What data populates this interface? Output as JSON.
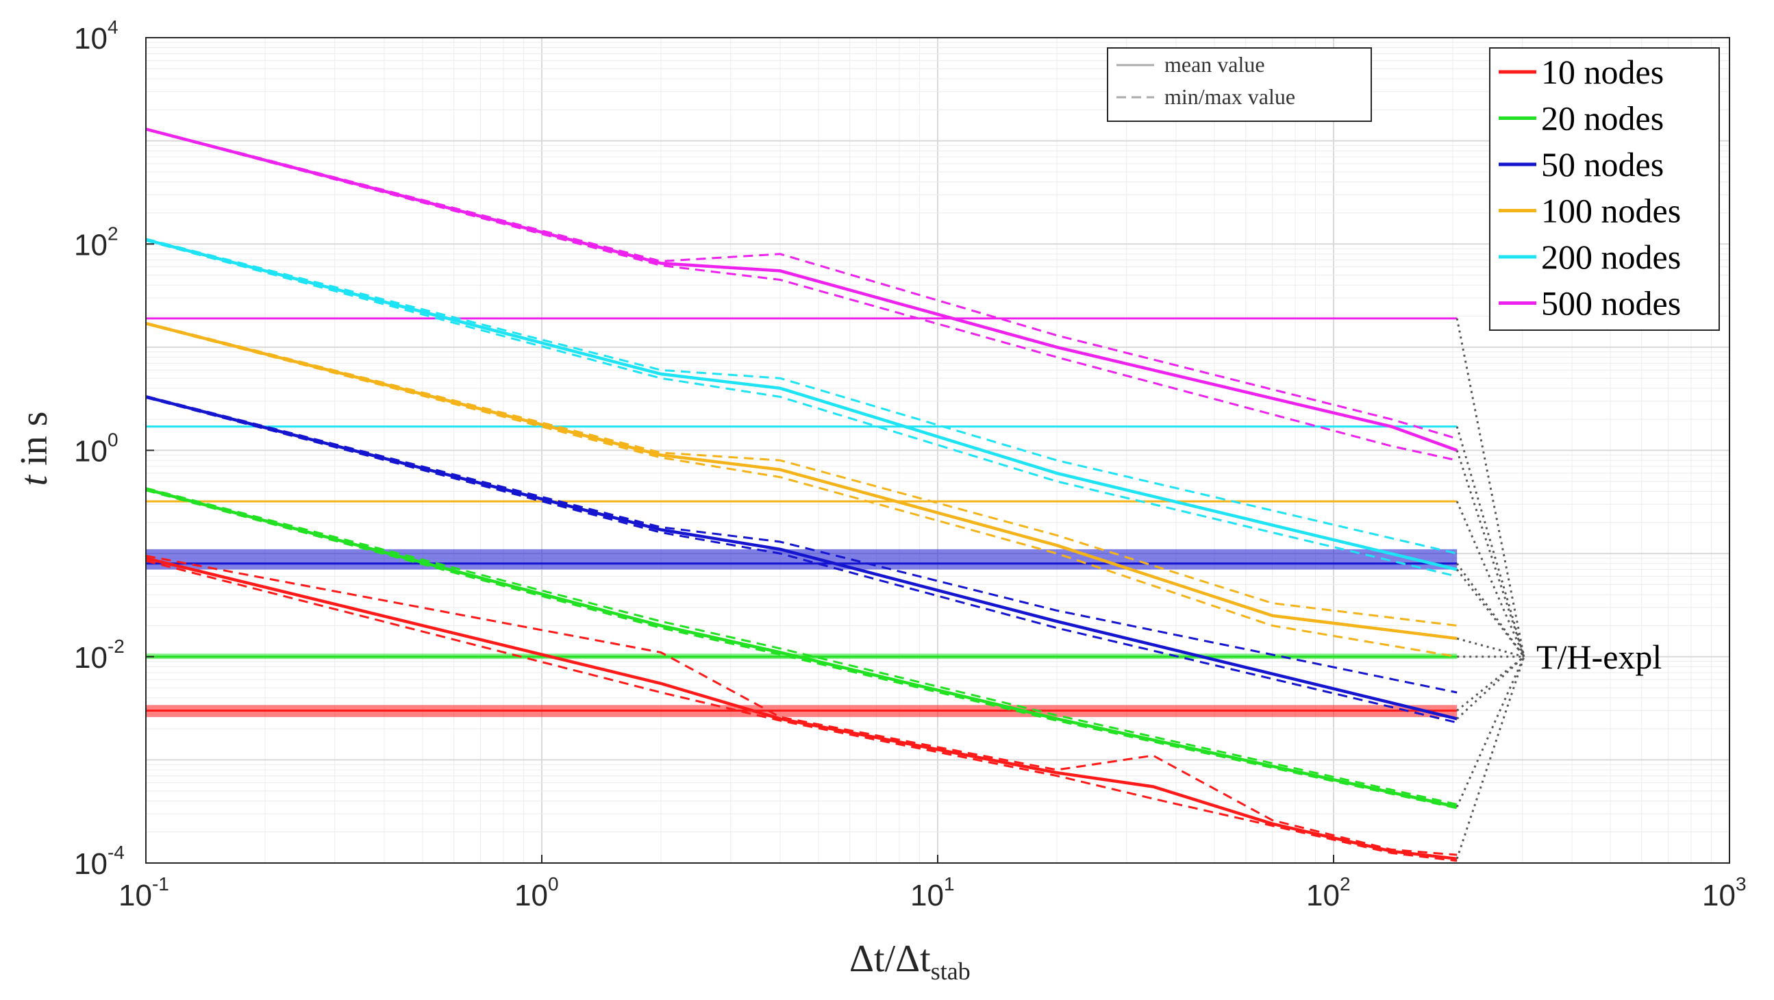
{
  "chart_data": {
    "type": "line",
    "xscale": "log",
    "yscale": "log",
    "xlim": [
      0.1,
      1000
    ],
    "ylim": [
      0.0001,
      10000
    ],
    "xlabel": {
      "main": "Δt/Δt",
      "sub": "stab"
    },
    "ylabel": {
      "italic": "t",
      "rest": " in s"
    },
    "x_ticks": [
      {
        "base": "10",
        "exp": "-1",
        "value": 0.1
      },
      {
        "base": "10",
        "exp": "0",
        "value": 1
      },
      {
        "base": "10",
        "exp": "1",
        "value": 10
      },
      {
        "base": "10",
        "exp": "2",
        "value": 100
      },
      {
        "base": "10",
        "exp": "3",
        "value": 1000
      }
    ],
    "y_ticks": [
      {
        "base": "10",
        "exp": "-4",
        "value": 0.0001
      },
      {
        "base": "10",
        "exp": "-2",
        "value": 0.01
      },
      {
        "base": "10",
        "exp": "0",
        "value": 1
      },
      {
        "base": "10",
        "exp": "2",
        "value": 100
      },
      {
        "base": "10",
        "exp": "4",
        "value": 10000
      }
    ],
    "grid": true,
    "legend": {
      "placement": "top-right",
      "entries": [
        "10 nodes",
        "20 nodes",
        "50 nodes",
        "100 nodes",
        "200 nodes",
        "500 nodes"
      ]
    },
    "style_legend": {
      "placement": "top-center-right",
      "entries": [
        {
          "label": "mean value",
          "style": "solid"
        },
        {
          "label": "min/max value",
          "style": "dashed"
        }
      ]
    },
    "annotation": {
      "text": "T/H-expl",
      "x": 310
    },
    "series": [
      {
        "name": "10 nodes",
        "color": "#ff1a1a",
        "x": [
          0.1,
          2,
          4,
          20,
          35,
          70,
          140,
          205
        ],
        "mean": [
          0.09,
          0.0055,
          0.0025,
          0.00075,
          0.00055,
          0.00024,
          0.00013,
          0.00011
        ],
        "min": [
          0.085,
          0.0045,
          0.0024,
          0.0007,
          0.00042,
          0.00023,
          0.000125,
          0.000105
        ],
        "max": [
          0.095,
          0.011,
          0.0026,
          0.0008,
          0.0011,
          0.00026,
          0.000135,
          0.00012
        ],
        "hline": {
          "value": 0.003,
          "band": [
            0.0026,
            0.0034
          ]
        }
      },
      {
        "name": "20 nodes",
        "color": "#22e022",
        "x": [
          0.1,
          2,
          4,
          20,
          205
        ],
        "mean": [
          0.42,
          0.02,
          0.011,
          0.0025,
          0.00035
        ],
        "min": [
          0.41,
          0.019,
          0.0105,
          0.0024,
          0.00034
        ],
        "max": [
          0.43,
          0.022,
          0.012,
          0.0027,
          0.00037
        ],
        "hline": {
          "value": 0.01,
          "band": [
            0.0095,
            0.0107
          ]
        }
      },
      {
        "name": "50 nodes",
        "color": "#1515d0",
        "x": [
          0.1,
          2,
          4,
          20,
          205
        ],
        "mean": [
          3.3,
          0.17,
          0.11,
          0.022,
          0.0025
        ],
        "min": [
          3.25,
          0.16,
          0.1,
          0.019,
          0.0023
        ],
        "max": [
          3.35,
          0.18,
          0.13,
          0.028,
          0.0045
        ],
        "hline": {
          "value": 0.08,
          "band": [
            0.07,
            0.11
          ]
        }
      },
      {
        "name": "100 nodes",
        "color": "#f5b31a",
        "x": [
          0.1,
          2,
          4,
          20,
          70,
          205
        ],
        "mean": [
          17,
          0.9,
          0.65,
          0.12,
          0.025,
          0.015
        ],
        "min": [
          16.8,
          0.85,
          0.55,
          0.1,
          0.02,
          0.01
        ],
        "max": [
          17.2,
          0.95,
          0.8,
          0.15,
          0.033,
          0.02
        ],
        "hline": {
          "value": 0.32
        }
      },
      {
        "name": "200 nodes",
        "color": "#1ee3f5",
        "x": [
          0.1,
          2,
          4,
          20,
          205
        ],
        "mean": [
          110,
          5.5,
          4,
          0.6,
          0.07
        ],
        "min": [
          108,
          5.0,
          3.3,
          0.5,
          0.06
        ],
        "max": [
          112,
          6.0,
          5.0,
          0.8,
          0.1
        ],
        "hline": {
          "value": 1.7
        }
      },
      {
        "name": "500 nodes",
        "color": "#ee22ee",
        "x": [
          0.1,
          2,
          4,
          20,
          140,
          205
        ],
        "mean": [
          1300,
          65,
          55,
          10,
          1.7,
          1.0
        ],
        "min": [
          1290,
          62,
          45,
          8,
          1.1,
          0.8
        ],
        "max": [
          1310,
          68,
          80,
          13,
          2.0,
          1.3
        ],
        "hline": {
          "value": 19
        }
      }
    ]
  }
}
